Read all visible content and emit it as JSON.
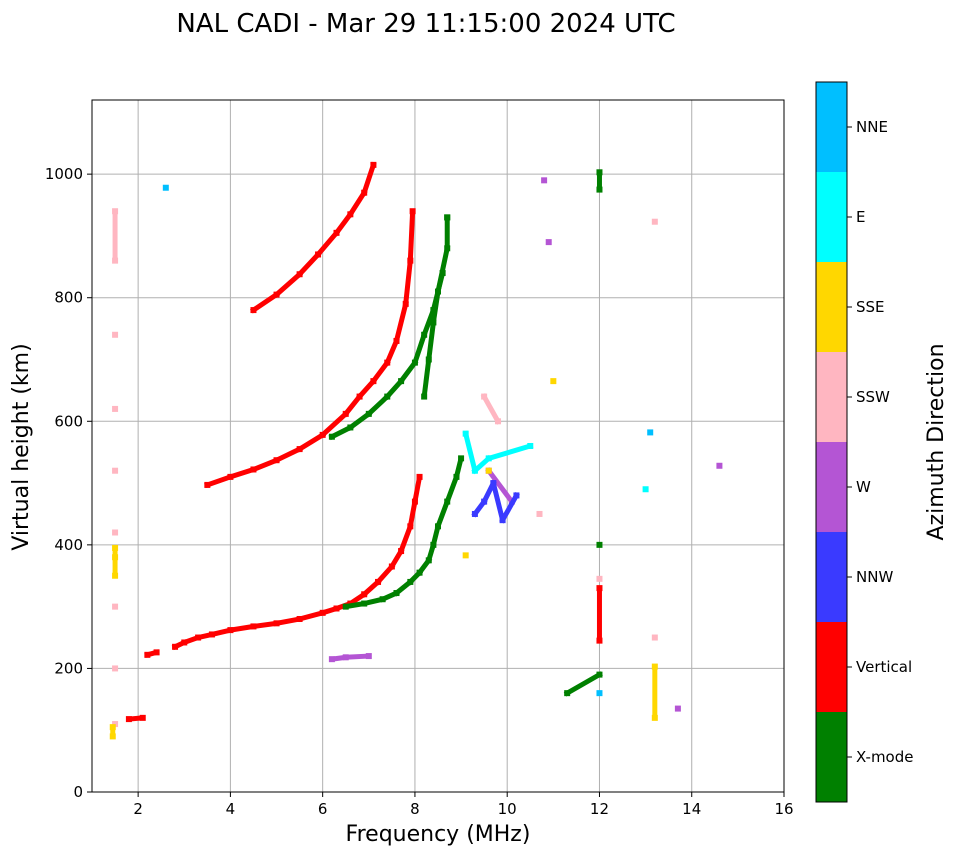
{
  "chart_data": {
    "type": "scatter",
    "title": "NAL CADI - Mar 29 11:15:00 2024 UTC",
    "xlabel": "Frequency (MHz)",
    "ylabel": "Virtual height (km)",
    "xlim": [
      1,
      16
    ],
    "ylim": [
      0,
      1120
    ],
    "xticks": [
      2,
      4,
      6,
      8,
      10,
      12,
      14,
      16
    ],
    "yticks": [
      0,
      200,
      400,
      600,
      800,
      1000
    ],
    "grid": true,
    "colorbar": {
      "label": "Azimuth Direction",
      "categories": [
        {
          "name": "X-mode",
          "color": "#008000"
        },
        {
          "name": "Vertical",
          "color": "#ff0000"
        },
        {
          "name": "NNW",
          "color": "#3a3aff"
        },
        {
          "name": "W",
          "color": "#b455d4"
        },
        {
          "name": "SSW",
          "color": "#ffb6c1"
        },
        {
          "name": "SSE",
          "color": "#ffd700"
        },
        {
          "name": "E",
          "color": "#00ffff"
        },
        {
          "name": "NNE",
          "color": "#00bfff"
        }
      ]
    },
    "traces": [
      {
        "direction": "Vertical",
        "points": [
          [
            2.8,
            235
          ],
          [
            3.0,
            242
          ],
          [
            3.3,
            250
          ],
          [
            3.6,
            255
          ],
          [
            4.0,
            262
          ],
          [
            4.5,
            268
          ],
          [
            5.0,
            273
          ],
          [
            5.5,
            280
          ],
          [
            6.0,
            290
          ],
          [
            6.3,
            297
          ],
          [
            6.6,
            305
          ],
          [
            6.9,
            320
          ],
          [
            7.2,
            340
          ],
          [
            7.5,
            365
          ],
          [
            7.7,
            390
          ],
          [
            7.9,
            430
          ],
          [
            8.0,
            470
          ],
          [
            8.1,
            510
          ]
        ]
      },
      {
        "direction": "X-mode",
        "points": [
          [
            6.5,
            300
          ],
          [
            6.9,
            305
          ],
          [
            7.3,
            312
          ],
          [
            7.6,
            322
          ],
          [
            7.9,
            340
          ],
          [
            8.1,
            355
          ],
          [
            8.3,
            375
          ],
          [
            8.4,
            400
          ],
          [
            8.5,
            430
          ],
          [
            8.7,
            470
          ],
          [
            8.9,
            510
          ],
          [
            9.0,
            540
          ]
        ]
      },
      {
        "direction": "Vertical",
        "points": [
          [
            3.5,
            497
          ],
          [
            4.0,
            510
          ],
          [
            4.5,
            522
          ],
          [
            5.0,
            537
          ],
          [
            5.5,
            555
          ],
          [
            6.0,
            578
          ],
          [
            6.5,
            612
          ],
          [
            6.8,
            640
          ],
          [
            7.1,
            665
          ],
          [
            7.4,
            695
          ],
          [
            7.6,
            730
          ],
          [
            7.8,
            790
          ],
          [
            7.9,
            860
          ],
          [
            7.95,
            940
          ]
        ]
      },
      {
        "direction": "X-mode",
        "points": [
          [
            6.2,
            575
          ],
          [
            6.6,
            590
          ],
          [
            7.0,
            612
          ],
          [
            7.4,
            640
          ],
          [
            7.7,
            665
          ],
          [
            8.0,
            695
          ],
          [
            8.2,
            740
          ],
          [
            8.4,
            780
          ],
          [
            8.6,
            840
          ],
          [
            8.7,
            930
          ]
        ]
      },
      {
        "direction": "Vertical",
        "points": [
          [
            4.5,
            780
          ],
          [
            5.0,
            805
          ],
          [
            5.5,
            838
          ],
          [
            5.9,
            870
          ],
          [
            6.3,
            905
          ],
          [
            6.6,
            935
          ],
          [
            6.9,
            970
          ],
          [
            7.1,
            1015
          ]
        ]
      },
      {
        "direction": "X-mode",
        "points": [
          [
            8.2,
            640
          ],
          [
            8.3,
            700
          ],
          [
            8.4,
            760
          ],
          [
            8.5,
            810
          ],
          [
            8.7,
            880
          ],
          [
            8.7,
            930
          ]
        ]
      },
      {
        "direction": "SSW",
        "points": [
          [
            1.5,
            110
          ],
          [
            1.5,
            200
          ],
          [
            1.5,
            300
          ],
          [
            1.5,
            420
          ],
          [
            1.5,
            520
          ],
          [
            1.5,
            620
          ],
          [
            1.5,
            740
          ],
          [
            1.5,
            860
          ],
          [
            1.5,
            940
          ]
        ]
      },
      {
        "direction": "SSE",
        "points": [
          [
            1.45,
            90
          ],
          [
            1.45,
            105
          ],
          [
            1.5,
            350
          ],
          [
            1.5,
            380
          ],
          [
            1.5,
            395
          ]
        ]
      },
      {
        "direction": "Vertical",
        "points": [
          [
            1.8,
            118
          ],
          [
            2.1,
            120
          ],
          [
            2.2,
            222
          ],
          [
            2.4,
            226
          ]
        ]
      },
      {
        "direction": "NNE",
        "points": [
          [
            2.6,
            978
          ],
          [
            12.0,
            160
          ],
          [
            13.1,
            582
          ]
        ]
      },
      {
        "direction": "W",
        "points": [
          [
            6.2,
            215
          ],
          [
            6.5,
            218
          ],
          [
            7.0,
            220
          ],
          [
            9.6,
            520
          ],
          [
            10.1,
            470
          ],
          [
            10.8,
            990
          ],
          [
            10.9,
            890
          ],
          [
            14.6,
            528
          ],
          [
            13.7,
            135
          ]
        ]
      },
      {
        "direction": "NNW",
        "points": [
          [
            9.3,
            450
          ],
          [
            9.5,
            470
          ],
          [
            9.7,
            500
          ],
          [
            9.9,
            440
          ],
          [
            10.2,
            480
          ]
        ]
      },
      {
        "direction": "E",
        "points": [
          [
            9.1,
            580
          ],
          [
            9.3,
            520
          ],
          [
            9.6,
            540
          ],
          [
            10.5,
            560
          ],
          [
            13.0,
            490
          ]
        ]
      },
      {
        "direction": "SSE",
        "points": [
          [
            9.1,
            383
          ],
          [
            9.6,
            520
          ],
          [
            11.0,
            665
          ],
          [
            13.2,
            120
          ],
          [
            13.2,
            203
          ]
        ]
      },
      {
        "direction": "SSW",
        "points": [
          [
            9.5,
            640
          ],
          [
            9.8,
            600
          ],
          [
            10.7,
            450
          ],
          [
            12.0,
            345
          ],
          [
            13.2,
            250
          ],
          [
            13.2,
            923
          ]
        ]
      },
      {
        "direction": "X-mode",
        "points": [
          [
            11.3,
            160
          ],
          [
            12.0,
            190
          ],
          [
            12.0,
            400
          ],
          [
            12.0,
            975
          ],
          [
            12.0,
            1003
          ]
        ]
      },
      {
        "direction": "Vertical",
        "points": [
          [
            12.0,
            330
          ],
          [
            12.0,
            245
          ]
        ]
      }
    ]
  }
}
